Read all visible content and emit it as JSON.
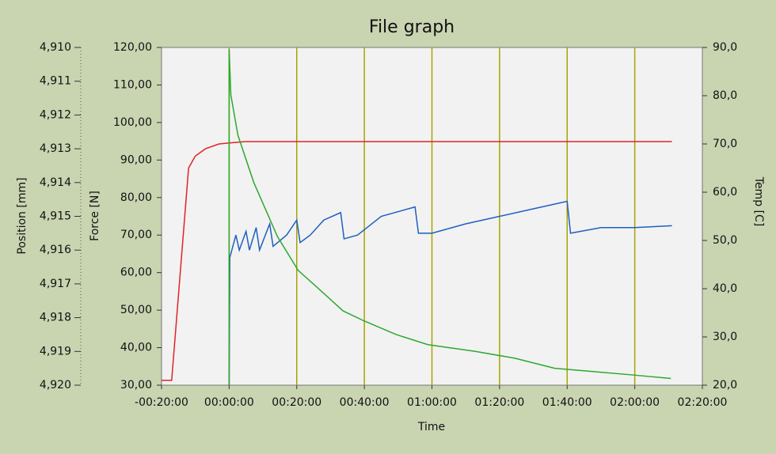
{
  "chart_data": {
    "type": "line",
    "title": "File graph",
    "x_label": "Time",
    "y_label": "Force [N]",
    "y2_label": "Temp [C]",
    "y3_label": "Position [mm]",
    "xlim": [
      -20,
      140
    ],
    "xticks": [
      {
        "value": -20,
        "label": "-00:20:00"
      },
      {
        "value": 0,
        "label": "00:00:00"
      },
      {
        "value": 20,
        "label": "00:20:00"
      },
      {
        "value": 40,
        "label": "00:40:00"
      },
      {
        "value": 60,
        "label": "01:00:00"
      },
      {
        "value": 80,
        "label": "01:20:00"
      },
      {
        "value": 100,
        "label": "01:40:00"
      },
      {
        "value": 120,
        "label": "02:00:00"
      },
      {
        "value": 140,
        "label": "02:20:00"
      }
    ],
    "ylim": [
      30,
      120
    ],
    "yticks": [
      {
        "value": 30,
        "label": "30,00"
      },
      {
        "value": 40,
        "label": "40,00"
      },
      {
        "value": 50,
        "label": "50,00"
      },
      {
        "value": 60,
        "label": "60,00"
      },
      {
        "value": 70,
        "label": "70,00"
      },
      {
        "value": 80,
        "label": "80,00"
      },
      {
        "value": 90,
        "label": "90,00"
      },
      {
        "value": 100,
        "label": "100,00"
      },
      {
        "value": 110,
        "label": "110,00"
      },
      {
        "value": 120,
        "label": "120,00"
      }
    ],
    "y2lim": [
      20,
      90
    ],
    "y2ticks": [
      {
        "value": 20,
        "label": "20,0"
      },
      {
        "value": 30,
        "label": "30,0"
      },
      {
        "value": 40,
        "label": "40,0"
      },
      {
        "value": 50,
        "label": "50,0"
      },
      {
        "value": 60,
        "label": "60,0"
      },
      {
        "value": 70,
        "label": "70,0"
      },
      {
        "value": 80,
        "label": "80,0"
      },
      {
        "value": 90,
        "label": "90,0"
      }
    ],
    "y3lim": [
      4.92,
      4.91
    ],
    "y3ticks": [
      {
        "value": 4.91,
        "label": "4,910"
      },
      {
        "value": 4.911,
        "label": "4,911"
      },
      {
        "value": 4.912,
        "label": "4,912"
      },
      {
        "value": 4.913,
        "label": "4,913"
      },
      {
        "value": 4.914,
        "label": "4,914"
      },
      {
        "value": 4.915,
        "label": "4,915"
      },
      {
        "value": 4.916,
        "label": "4,916"
      },
      {
        "value": 4.917,
        "label": "4,917"
      },
      {
        "value": 4.918,
        "label": "4,918"
      },
      {
        "value": 4.919,
        "label": "4,919"
      },
      {
        "value": 4.92,
        "label": "4,920"
      }
    ],
    "grid": true,
    "grid_color": "#a9a400",
    "series": [
      {
        "color": "#e02424",
        "axis": "y2",
        "x": [
          -20,
          -17,
          -12,
          -10,
          -7,
          -3,
          0,
          5,
          131
        ],
        "values": [
          21,
          21,
          65,
          67.5,
          69,
          70,
          70.2,
          70.5,
          70.5
        ]
      },
      {
        "color": "#1f5fbf",
        "axis": "y",
        "x": [
          0,
          0.2,
          2,
          3,
          5,
          6,
          8,
          9,
          12,
          13,
          17,
          20,
          21,
          24,
          28,
          33,
          34,
          38,
          45,
          55,
          56,
          60,
          70,
          80,
          90,
          100,
          101,
          110,
          120,
          131
        ],
        "values": [
          30,
          64,
          70,
          66,
          71,
          66,
          72,
          66,
          73,
          67,
          70,
          74,
          68,
          70,
          74,
          76,
          69,
          70,
          75,
          77.5,
          70.5,
          70.5,
          73,
          75,
          77,
          79,
          70.5,
          72,
          72,
          72.5
        ]
      },
      {
        "color": "#2ea82e",
        "axis": "y3",
        "x": [
          0,
          0,
          0.5,
          2.6,
          7.3,
          14.3,
          20.4,
          26,
          33.7,
          40,
          49.4,
          58.8,
          72.8,
          84.5,
          96.3,
          108,
          119.7,
          130.7
        ],
        "values": [
          4.92,
          4.91005,
          4.9114,
          4.9126,
          4.914,
          4.9156,
          4.9166,
          4.9171,
          4.9178,
          4.9181,
          4.9185,
          4.9188,
          4.919,
          4.9192,
          4.9195,
          4.9196,
          4.9197,
          4.9198
        ]
      }
    ]
  }
}
